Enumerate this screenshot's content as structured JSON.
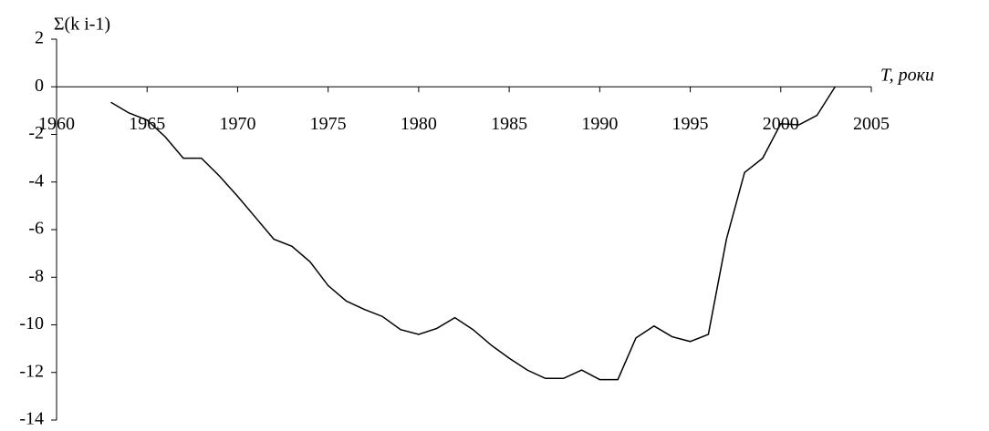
{
  "chart_data": {
    "type": "line",
    "ylabel": "Σ(k i-1)",
    "xlabel": "T,  роки",
    "x": [
      1963,
      1964,
      1965,
      1966,
      1967,
      1968,
      1969,
      1970,
      1971,
      1972,
      1973,
      1974,
      1975,
      1976,
      1977,
      1978,
      1979,
      1980,
      1981,
      1982,
      1983,
      1984,
      1985,
      1986,
      1987,
      1988,
      1989,
      1990,
      1991,
      1992,
      1993,
      1994,
      1995,
      1996,
      1997,
      1998,
      1999,
      2000,
      2001,
      2002,
      2003
    ],
    "series": [
      {
        "color": "#000000",
        "values": [
          -0.65,
          -1.1,
          -1.4,
          -2.1,
          -3.0,
          -3.0,
          -3.75,
          -4.6,
          -5.5,
          -6.4,
          -6.7,
          -7.35,
          -8.35,
          -9.0,
          -9.35,
          -9.65,
          -10.2,
          -10.4,
          -10.15,
          -9.7,
          -10.2,
          -10.85,
          -11.4,
          -11.9,
          -12.25,
          -12.25,
          -11.9,
          -12.3,
          -12.3,
          -10.55,
          -10.05,
          -10.5,
          -10.7,
          -10.4,
          -6.4,
          -3.6,
          -3.0,
          -1.55,
          -1.6,
          -1.2,
          0
        ]
      }
    ],
    "xlim": [
      1960,
      2005
    ],
    "xticks": [
      1960,
      1965,
      1970,
      1975,
      1980,
      1985,
      1990,
      1995,
      2000,
      2005
    ],
    "ylim": [
      -14,
      2
    ],
    "yticks": [
      -14,
      -12,
      -10,
      -8,
      -6,
      -4,
      -2,
      0,
      2
    ],
    "grid": false
  }
}
